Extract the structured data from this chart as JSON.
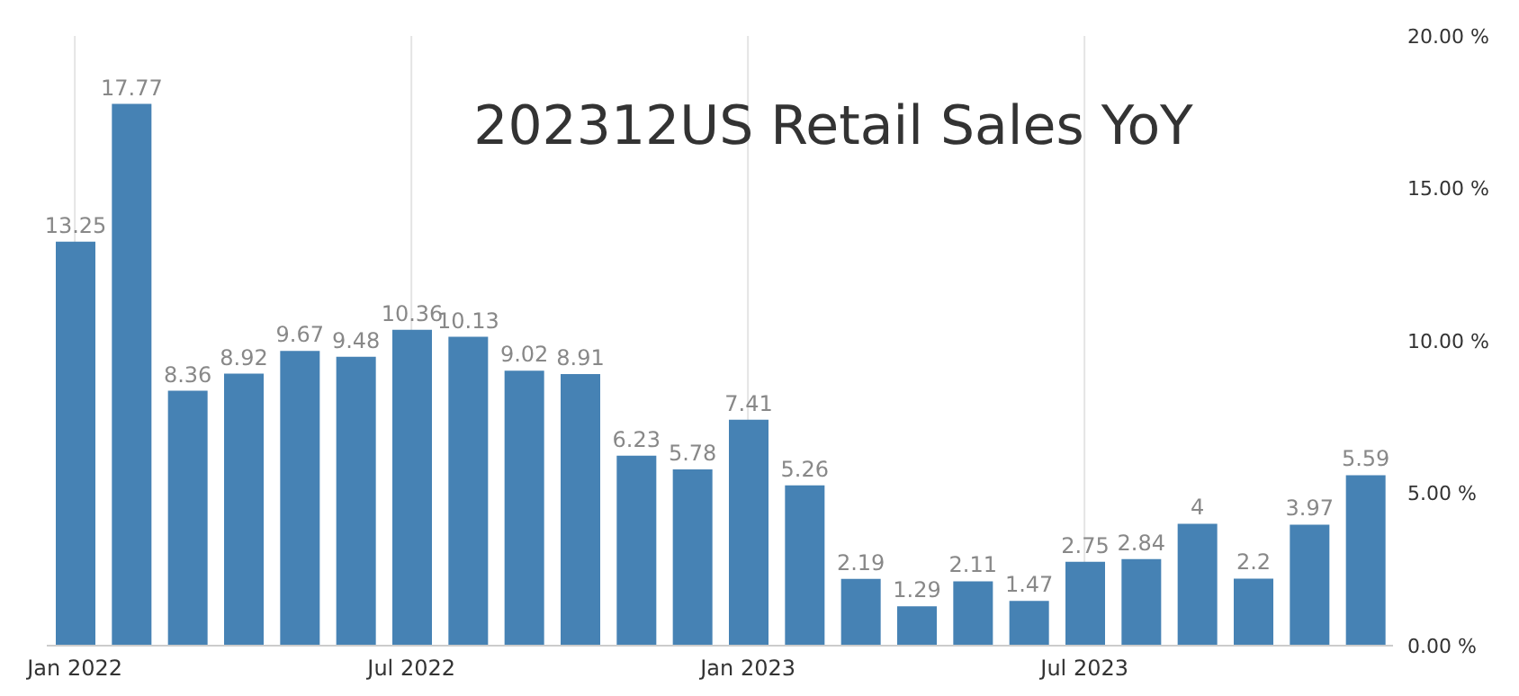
{
  "chart_data": {
    "type": "bar",
    "title": "202312US Retail Sales YoY",
    "categories": [
      "Jan 2022",
      null,
      null,
      null,
      null,
      null,
      "Jul 2022",
      null,
      null,
      null,
      null,
      null,
      "Jan 2023",
      null,
      null,
      null,
      null,
      null,
      "Jul 2023",
      null,
      null,
      null,
      null,
      null
    ],
    "values": [
      13.25,
      17.77,
      8.36,
      8.92,
      9.67,
      9.48,
      10.36,
      10.13,
      9.02,
      8.91,
      6.23,
      5.78,
      7.41,
      5.26,
      2.19,
      1.29,
      2.11,
      1.47,
      2.75,
      2.84,
      4,
      2.2,
      3.97,
      5.59
    ],
    "value_labels": [
      "13.25",
      "17.77",
      "8.36",
      "8.92",
      "9.67",
      "9.48",
      "10.36",
      "10.13",
      "9.02",
      "8.91",
      "6.23",
      "5.78",
      "7.41",
      "5.26",
      "2.19",
      "1.29",
      "2.11",
      "1.47",
      "2.75",
      "2.84",
      "4",
      "2.2",
      "3.97",
      "5.59"
    ],
    "color": "#4682b4",
    "ylim": [
      0,
      20
    ],
    "yticks": [
      {
        "value": 0,
        "label": "0.00 %"
      },
      {
        "value": 5,
        "label": "5.00 %"
      },
      {
        "value": 10,
        "label": "10.00 %"
      },
      {
        "value": 15,
        "label": "15.00 %"
      },
      {
        "value": 20,
        "label": "20.00 %"
      }
    ],
    "grid": "x"
  }
}
